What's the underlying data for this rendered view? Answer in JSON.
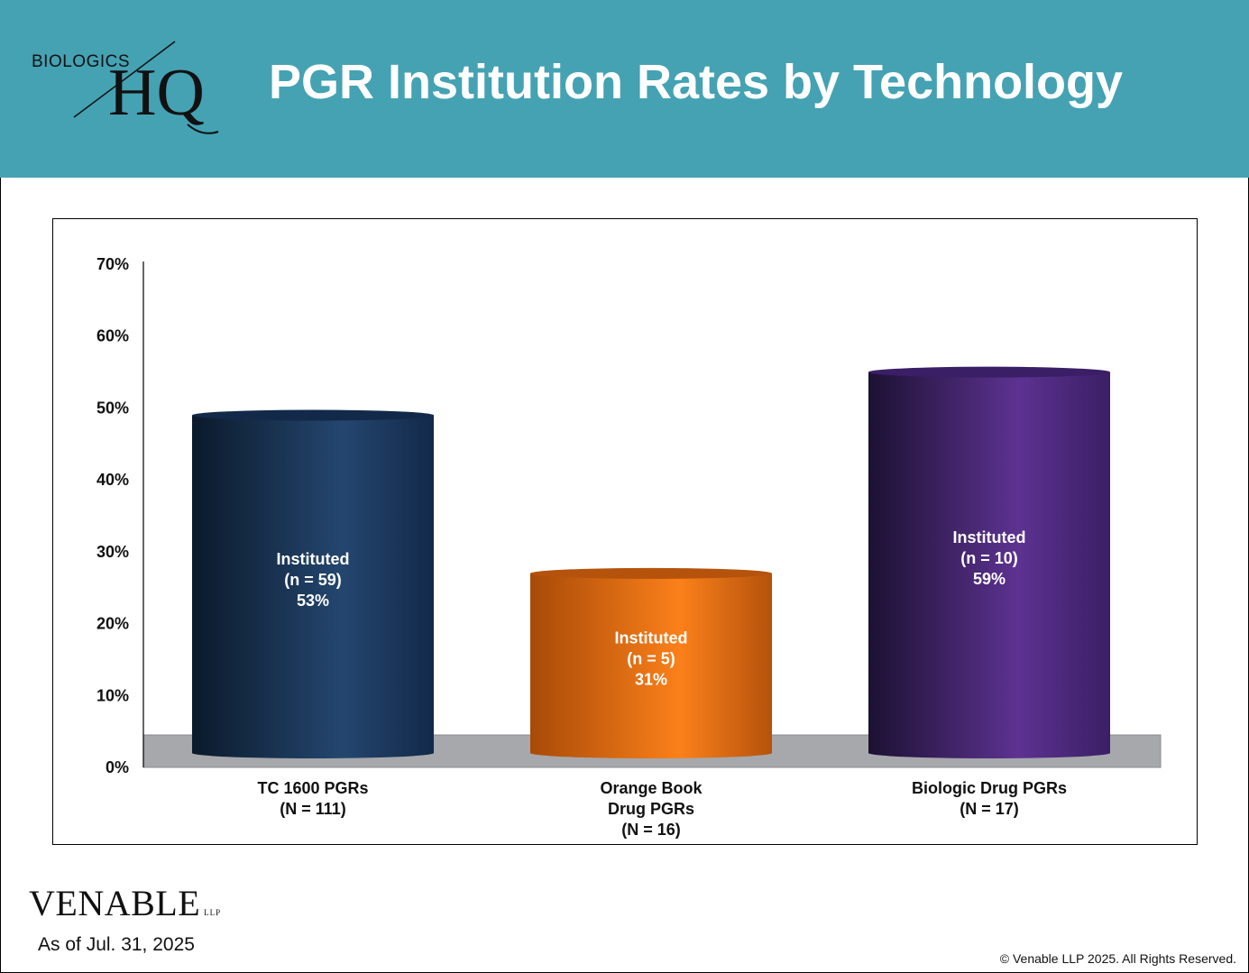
{
  "header": {
    "logo_top": "BIOLOGICS",
    "logo_main": "HQ",
    "title": "PGR Institution Rates by Technology"
  },
  "footer": {
    "brand": "VENABLE",
    "brand_suffix": "LLP",
    "as_of": "As of Jul. 31, 2025",
    "copyright": "© Venable LLP 2025. All Rights Reserved."
  },
  "colors": {
    "header_bg": "#44a2b3",
    "floor": "#a6a8ab"
  },
  "chart_data": {
    "type": "bar",
    "style": "3d-cylinder",
    "ylim": [
      0,
      70
    ],
    "yticks": [
      "0%",
      "10%",
      "20%",
      "30%",
      "40%",
      "50%",
      "60%",
      "70%"
    ],
    "categories": [
      [
        "TC 1600 PGRs",
        "(N = 111)"
      ],
      [
        "Orange Book",
        "Drug PGRs",
        "(N = 16)"
      ],
      [
        "Biologic Drug PGRs",
        "(N = 17)"
      ]
    ],
    "values": [
      53,
      31,
      59
    ],
    "data_labels": [
      [
        "Instituted",
        "(n = 59)",
        "53%"
      ],
      [
        "Instituted",
        "(n = 5)",
        "31%"
      ],
      [
        "Instituted",
        "(n = 10)",
        "59%"
      ]
    ],
    "bar_colors": [
      {
        "dark": "#0b1a2c",
        "mid": "#24466e",
        "edge": "#12294a"
      },
      {
        "dark": "#a84a08",
        "mid": "#fb801a",
        "edge": "#b5520c"
      },
      {
        "dark": "#1c1133",
        "mid": "#5d3291",
        "edge": "#3a1f66"
      }
    ],
    "grid": false,
    "legend": "none"
  }
}
